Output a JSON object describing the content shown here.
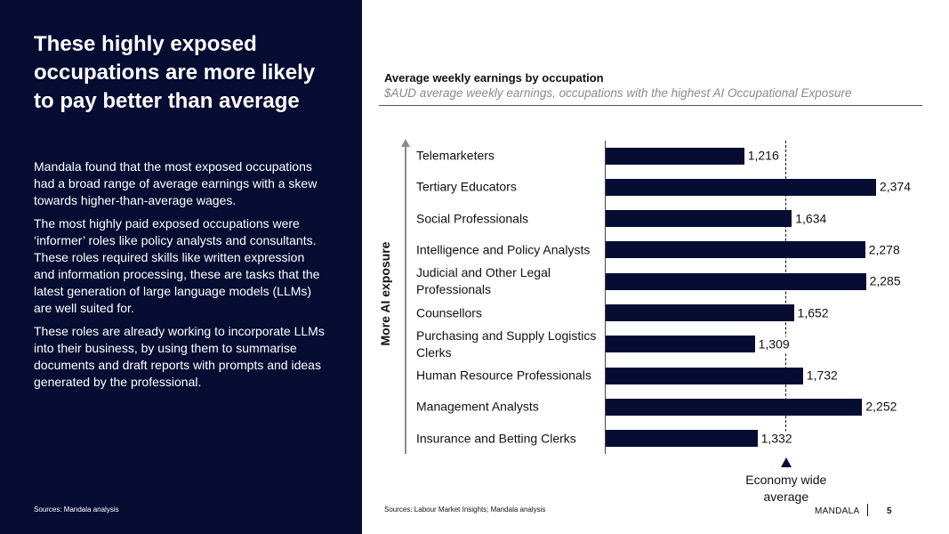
{
  "left_panel": {
    "headline": "These highly exposed occupations are more likely to pay better than average",
    "paragraphs": [
      "Mandala found that the most exposed occupations had a broad range of average earnings with a skew towards higher-than-average wages.",
      "The most highly paid exposed occupations were ‘informer’ roles like policy analysts and consultants. These roles required skills like written expression and information processing, these are tasks that the latest generation of large language models (LLMs) are well suited for.",
      "These roles are already working to incorporate LLMs into their business, by using them to summarise documents and draft reports with prompts and ideas generated by the professional."
    ],
    "source": "Sources: Mandala analysis"
  },
  "chart_data": {
    "type": "bar",
    "orientation": "horizontal",
    "title": "Average weekly earnings by occupation",
    "subtitle": "$AUD average weekly earnings, occupations with the highest AI Occupational Exposure",
    "ylabel": "More AI exposure",
    "categories": [
      "Telemarketers",
      "Tertiary Educators",
      "Social Professionals",
      "Intelligence and Policy Analysts",
      "Judicial and Other Legal Professionals",
      "Counsellors",
      "Purchasing and Supply Logistics Clerks",
      "Human Resource Professionals",
      "Management Analysts",
      "Insurance and Betting Clerks"
    ],
    "values": [
      1216,
      2374,
      1634,
      2278,
      2285,
      1652,
      1309,
      1732,
      2252,
      1332
    ],
    "value_labels": [
      "1,216",
      "2,374",
      "1,634",
      "2,278",
      "2,285",
      "1,652",
      "1,309",
      "1,732",
      "2,252",
      "1,332"
    ],
    "xlim": [
      0,
      2374
    ],
    "reference_line": {
      "label": "Economy wide average",
      "value": 1580
    },
    "bar_color": "#060c32"
  },
  "footer": {
    "source": "Sources: Labour Market Insights; Mandala analysis",
    "brand": "MANDALA",
    "page": "5"
  },
  "colors": {
    "panel": "#060c32",
    "accent_gray": "#8c8c8c"
  }
}
